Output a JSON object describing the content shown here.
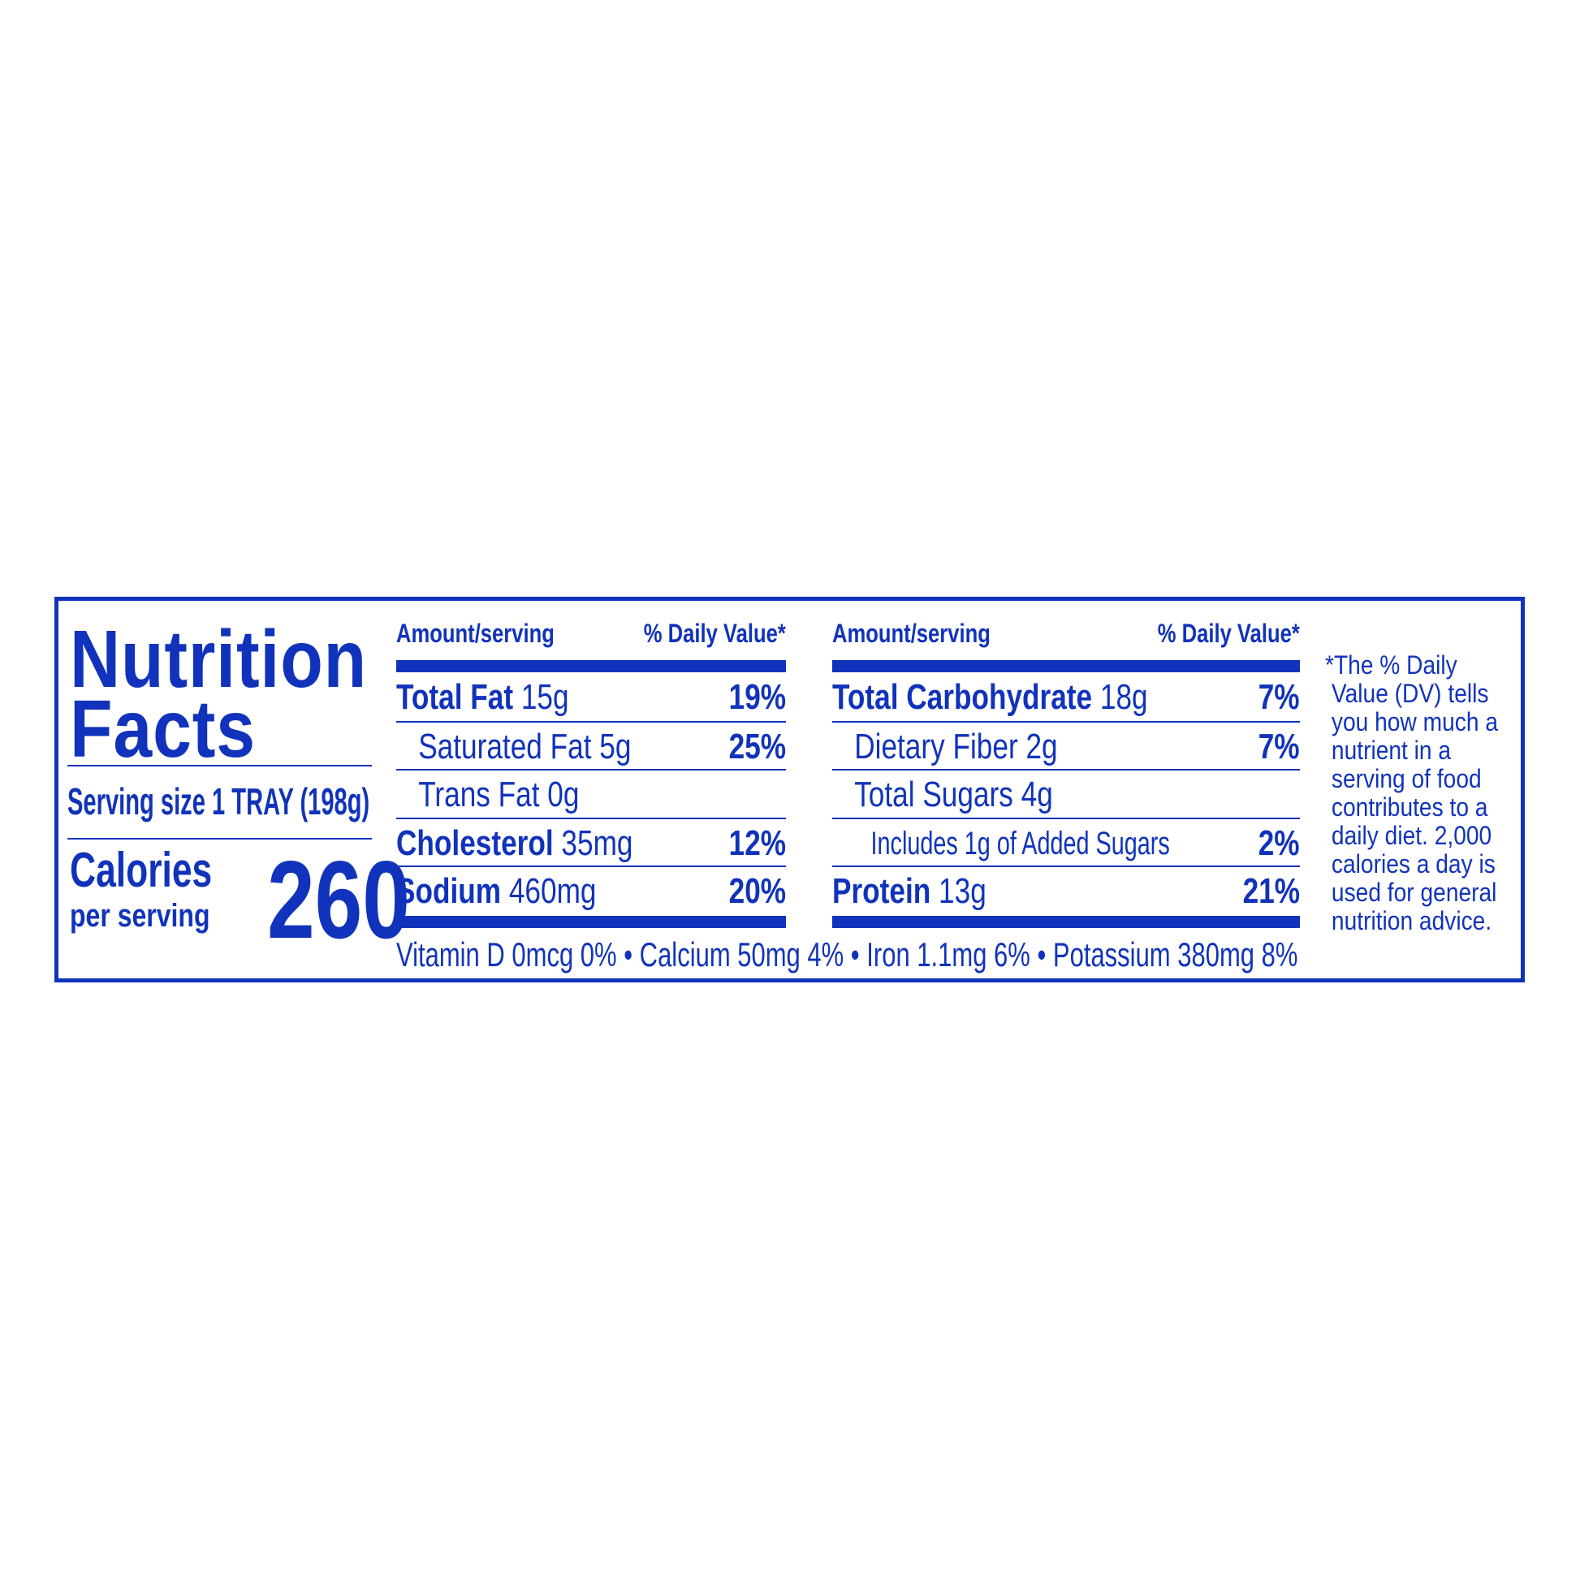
{
  "title_line1": "Nutrition",
  "title_line2": "Facts",
  "serving_size": "Serving size 1 TRAY (198g)",
  "calories_label": "Calories",
  "per_serving": "per serving",
  "calories_value": "260",
  "header_amount": "Amount/serving",
  "header_dv": "% Daily Value*",
  "left_rows": [
    {
      "name": "Total Fat",
      "amount": "15g",
      "dv": "19%"
    },
    {
      "name": "Saturated Fat 5g",
      "amount": "",
      "dv": "25%"
    },
    {
      "name": "Trans Fat 0g",
      "amount": "",
      "dv": ""
    },
    {
      "name": "Cholesterol",
      "amount": "35mg",
      "dv": "12%"
    },
    {
      "name": "Sodium",
      "amount": "460mg",
      "dv": "20%"
    }
  ],
  "right_rows": [
    {
      "name": "Total Carbohydrate",
      "amount": "18g",
      "dv": "7%"
    },
    {
      "name": "Dietary Fiber 2g",
      "amount": "",
      "dv": "7%"
    },
    {
      "name": "Total Sugars 4g",
      "amount": "",
      "dv": ""
    },
    {
      "name": "Includes 1g of Added Sugars",
      "amount": "",
      "dv": "2%"
    },
    {
      "name": "Protein",
      "amount": "13g",
      "dv": "21%"
    }
  ],
  "vitamins": "Vitamin D 0mcg 0% • Calcium 50mg 4% • Iron 1.1mg 6% • Potassium 380mg 8%",
  "footnote_lines": [
    "*The % Daily",
    "Value (DV) tells",
    "you how much a",
    "nutrient in a",
    "serving of food",
    "contributes to a",
    "daily diet. 2,000",
    "calories a day is",
    "used for general",
    "nutrition advice."
  ],
  "colors": {
    "ink": "#1133bb",
    "background": "#ffffff"
  }
}
